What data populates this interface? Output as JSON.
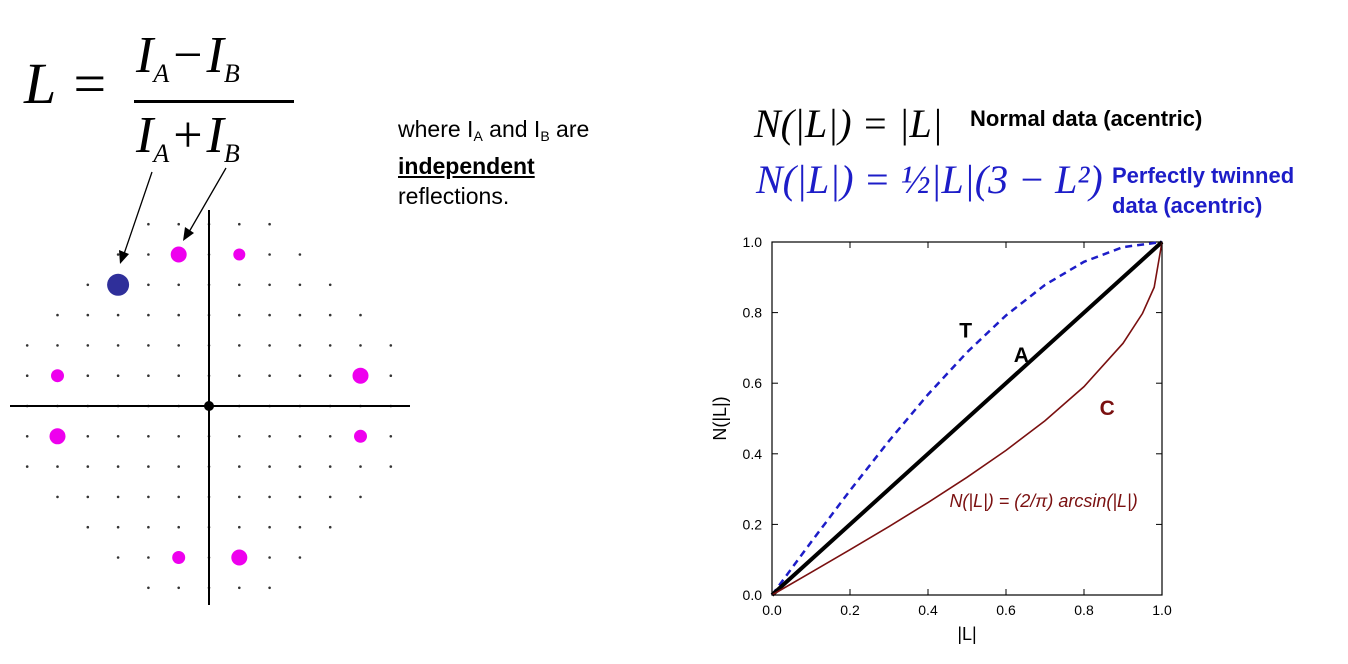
{
  "formula_L": {
    "lhs": "L =",
    "numerator": [
      "I",
      "A",
      "−",
      "I",
      "B"
    ],
    "denominator": [
      "I",
      "A",
      "+",
      "I",
      "B"
    ]
  },
  "description": {
    "line1_pre": "where I",
    "sub_a": "A",
    "and_text": " and I",
    "sub_b": "B",
    "line1_post": " are",
    "independent": "independent",
    "line3": "reflections."
  },
  "formula_normal": "N(|L|) = |L|",
  "label_normal": "Normal data (acentric)",
  "formula_twinned": "N(|L|) = ½|L|(3 − L²)",
  "label_twinned_line1": "Perfectly twinned",
  "label_twinned_line2": "data (acentric)",
  "colors": {
    "twinned": "#1d1dc8",
    "centric": "#7a1010",
    "acentric": "#000000",
    "spot_magenta": "#ee00ee",
    "spot_blue": "#2f2f9a"
  },
  "lattice": {
    "description": "reciprocal lattice diagram with origin at center",
    "icons": [
      "origin-dot",
      "lattice-dot",
      "magenta-spot",
      "blue-spot",
      "arrow"
    ]
  },
  "chart_data": {
    "type": "line",
    "xlabel": "|L|",
    "ylabel": "N(|L|)",
    "xlim": [
      0.0,
      1.0
    ],
    "ylim": [
      0.0,
      1.0
    ],
    "x_ticks": [
      "0.0",
      "0.2",
      "0.4",
      "0.6",
      "0.8",
      "1.0"
    ],
    "y_ticks": [
      "0.0",
      "0.2",
      "0.4",
      "0.6",
      "0.8",
      "1.0"
    ],
    "grid": false,
    "legend": "none",
    "series": [
      {
        "name": "T",
        "style": "dashed",
        "color": "#1d1dc8",
        "x": [
          0.0,
          0.1,
          0.2,
          0.3,
          0.4,
          0.5,
          0.6,
          0.7,
          0.8,
          0.9,
          1.0
        ],
        "y": [
          0.0,
          0.1495,
          0.296,
          0.4365,
          0.568,
          0.6875,
          0.792,
          0.8785,
          0.944,
          0.9855,
          1.0
        ]
      },
      {
        "name": "A",
        "style": "solid-thick",
        "color": "#000000",
        "x": [
          0.0,
          1.0
        ],
        "y": [
          0.0,
          1.0
        ]
      },
      {
        "name": "C",
        "style": "solid",
        "color": "#7a1010",
        "x": [
          0.0,
          0.1,
          0.2,
          0.3,
          0.4,
          0.5,
          0.6,
          0.7,
          0.8,
          0.9,
          0.95,
          0.98,
          1.0
        ],
        "y": [
          0.0,
          0.0638,
          0.1282,
          0.194,
          0.262,
          0.3333,
          0.4097,
          0.4936,
          0.5903,
          0.7129,
          0.7978,
          0.8718,
          1.0
        ]
      }
    ],
    "annotations": [
      {
        "text": "T",
        "x": 0.48,
        "y": 0.73,
        "color": "#000000"
      },
      {
        "text": "A",
        "x": 0.62,
        "y": 0.66,
        "color": "#000000"
      },
      {
        "text": "C",
        "x": 0.84,
        "y": 0.51,
        "color": "#7a1010"
      },
      {
        "text": "N(|L|) = (2/π) arcsin(|L|)",
        "x": 0.455,
        "y": 0.25,
        "color": "#7a1010"
      }
    ]
  }
}
